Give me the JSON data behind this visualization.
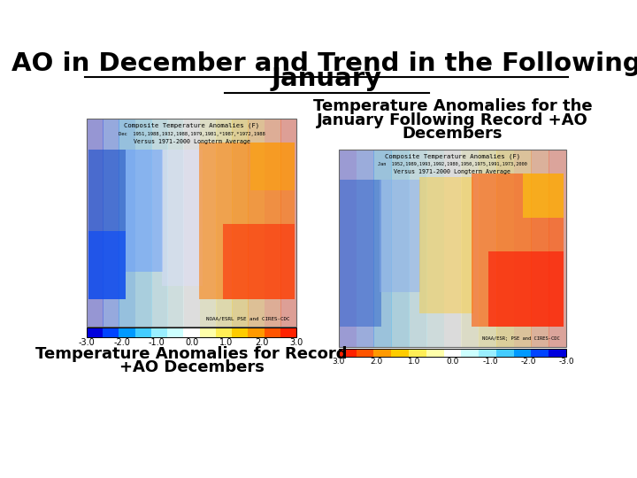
{
  "title_line1": "AO in December and Trend in the Following",
  "title_line2": "January",
  "background_color": "#ffffff",
  "left_caption_line1": "Temperature Anomalies for Record",
  "left_caption_line2": "+AO Decembers",
  "right_caption_line1": "Temperature Anomalies for the",
  "right_caption_line2": "January Following Record +AO",
  "right_caption_line3": "Decembers",
  "colorbar_values": [
    "-3.0",
    "-2.0",
    "-1.0",
    "0.0",
    "1.0",
    "2.0",
    "3.0"
  ],
  "title_fontsize": 21,
  "caption_fontsize": 13
}
